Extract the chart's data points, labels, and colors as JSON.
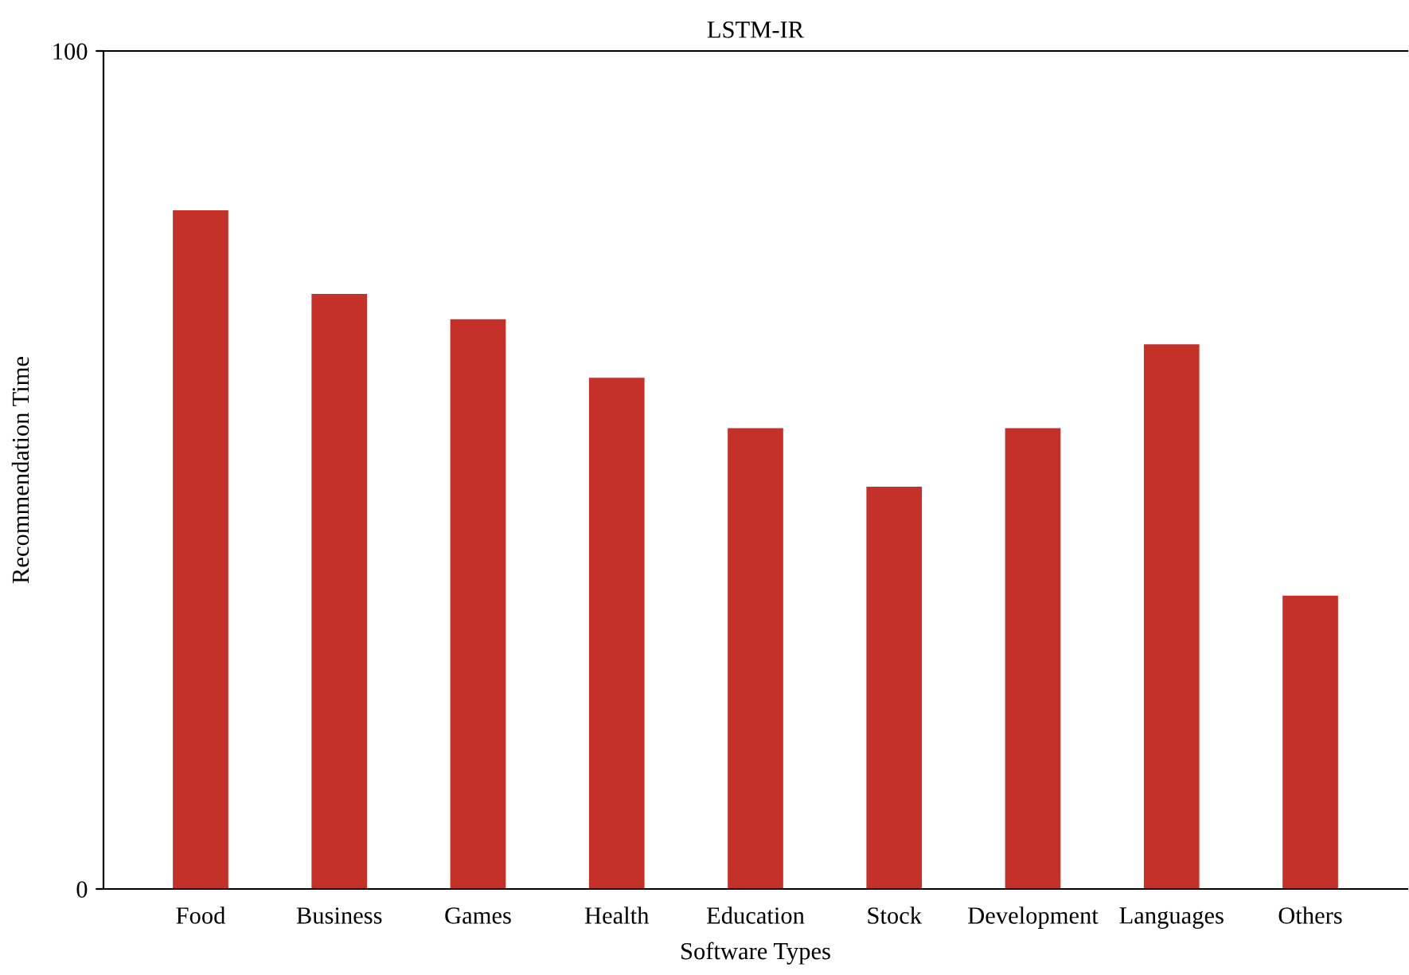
{
  "chart_data": {
    "type": "bar",
    "title": "LSTM-IR",
    "xlabel": "Software Types",
    "ylabel": "Recommendation Time",
    "categories": [
      "Food",
      "Business",
      "Games",
      "Health",
      "Education",
      "Stock",
      "Development",
      "Languages",
      "Others"
    ],
    "values": [
      81,
      71,
      68,
      61,
      55,
      48,
      55,
      65,
      35
    ],
    "color": "#c43128",
    "ylim": [
      0,
      100
    ],
    "yticks": [
      0,
      100
    ],
    "grid": false,
    "legend": false
  }
}
